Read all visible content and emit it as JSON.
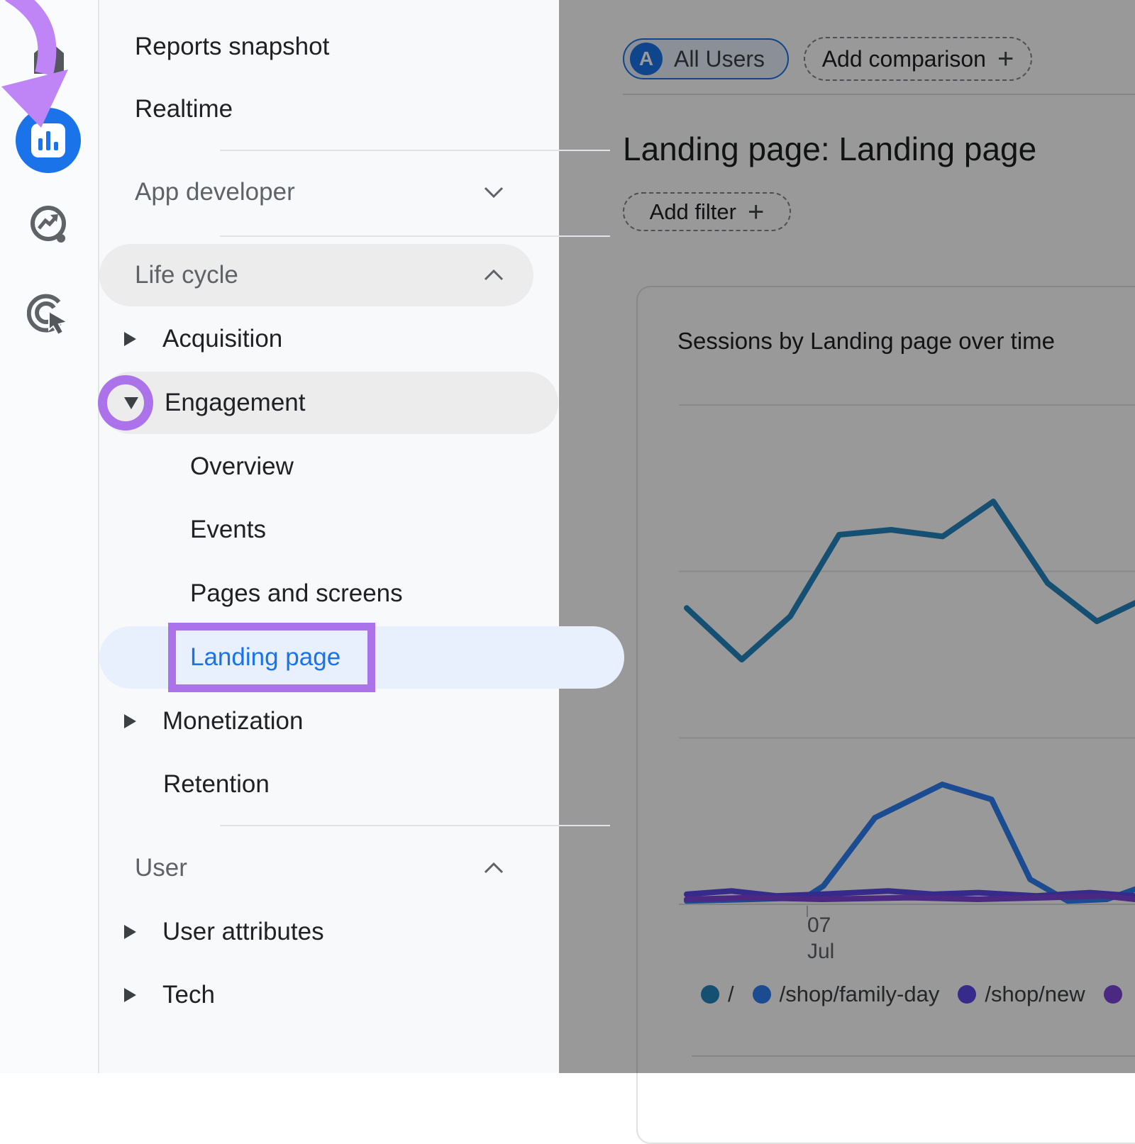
{
  "ui_colors": {
    "accent_blue": "#1a73e8",
    "annotation_purple": "#ab72ea",
    "annotation_arrow_purple": "#bf85f6",
    "nav_active_row_bg": "#e8f0fe",
    "dim_overlay": "rgba(0,0,0,0.40)"
  },
  "rail": {
    "items": [
      {
        "icon": "home-icon"
      },
      {
        "icon": "reports-bar-chart-icon",
        "active": true
      },
      {
        "icon": "explore-icon"
      },
      {
        "icon": "advertising-icon"
      }
    ]
  },
  "nav": {
    "reports_snapshot": "Reports snapshot",
    "realtime": "Realtime",
    "app_developer": "App developer",
    "life_cycle": "Life cycle",
    "acquisition": "Acquisition",
    "engagement": "Engagement",
    "overview": "Overview",
    "events": "Events",
    "pages_and_screens": "Pages and screens",
    "landing_page": "Landing page",
    "monetization": "Monetization",
    "retention": "Retention",
    "user": "User",
    "user_attributes": "User attributes",
    "tech": "Tech"
  },
  "header": {
    "audience_avatar": "A",
    "audience_label": "All Users",
    "add_comparison_label": "Add comparison",
    "plus": "+",
    "page_title": "Landing page: Landing page",
    "add_filter_label": "Add filter"
  },
  "chart": {
    "title": "Sessions by Landing page over time",
    "x_tick_day": "07",
    "x_tick_month": "Jul"
  },
  "chart_data": {
    "type": "line",
    "title": "Sessions by Landing page over time",
    "x_axis": {
      "visible_tick_label": "07 Jul",
      "tick_fraction": 0.269,
      "note": "daily points across early-to-mid July; only the 07 Jul tick is visible"
    },
    "y_axis": {
      "labels_visible": false,
      "ylim": [
        0,
        300
      ],
      "gridlines": [
        100,
        200,
        300
      ],
      "baseline": 0,
      "units": "sessions (scale estimated; gridline spacing assumed = 100)"
    },
    "legend_position": "bottom",
    "grid": true,
    "series": [
      {
        "name": "/",
        "color": "#2386c0",
        "points": [
          [
            0,
            178
          ],
          [
            0.123,
            147
          ],
          [
            0.231,
            173
          ],
          [
            0.34,
            222
          ],
          [
            0.456,
            225
          ],
          [
            0.571,
            221
          ],
          [
            0.684,
            242
          ],
          [
            0.805,
            193
          ],
          [
            0.915,
            170
          ],
          [
            1,
            181
          ]
        ]
      },
      {
        "name": "/shop/family-day",
        "color": "#2e7df0",
        "points": [
          [
            0,
            2
          ],
          [
            0.146,
            3
          ],
          [
            0.264,
            4
          ],
          [
            0.305,
            11
          ],
          [
            0.42,
            52
          ],
          [
            0.57,
            72
          ],
          [
            0.68,
            63
          ],
          [
            0.766,
            15
          ],
          [
            0.85,
            2
          ],
          [
            0.937,
            3
          ],
          [
            1,
            9
          ]
        ]
      },
      {
        "name": "/shop/new",
        "color": "#5a46e8",
        "points": [
          [
            0,
            6
          ],
          [
            0.1,
            8
          ],
          [
            0.2,
            5
          ],
          [
            0.3,
            6
          ],
          [
            0.45,
            8
          ],
          [
            0.55,
            6
          ],
          [
            0.65,
            7
          ],
          [
            0.78,
            5
          ],
          [
            0.9,
            7
          ],
          [
            1,
            5
          ]
        ]
      },
      {
        "name": "",
        "color": "#7d43d9",
        "note": "fourth series; legend label cut off at right edge of screenshot",
        "points": [
          [
            0,
            3
          ],
          [
            0.15,
            4
          ],
          [
            0.3,
            3
          ],
          [
            0.5,
            4
          ],
          [
            0.65,
            3
          ],
          [
            0.8,
            4
          ],
          [
            0.93,
            5
          ],
          [
            1,
            3
          ]
        ]
      }
    ]
  }
}
